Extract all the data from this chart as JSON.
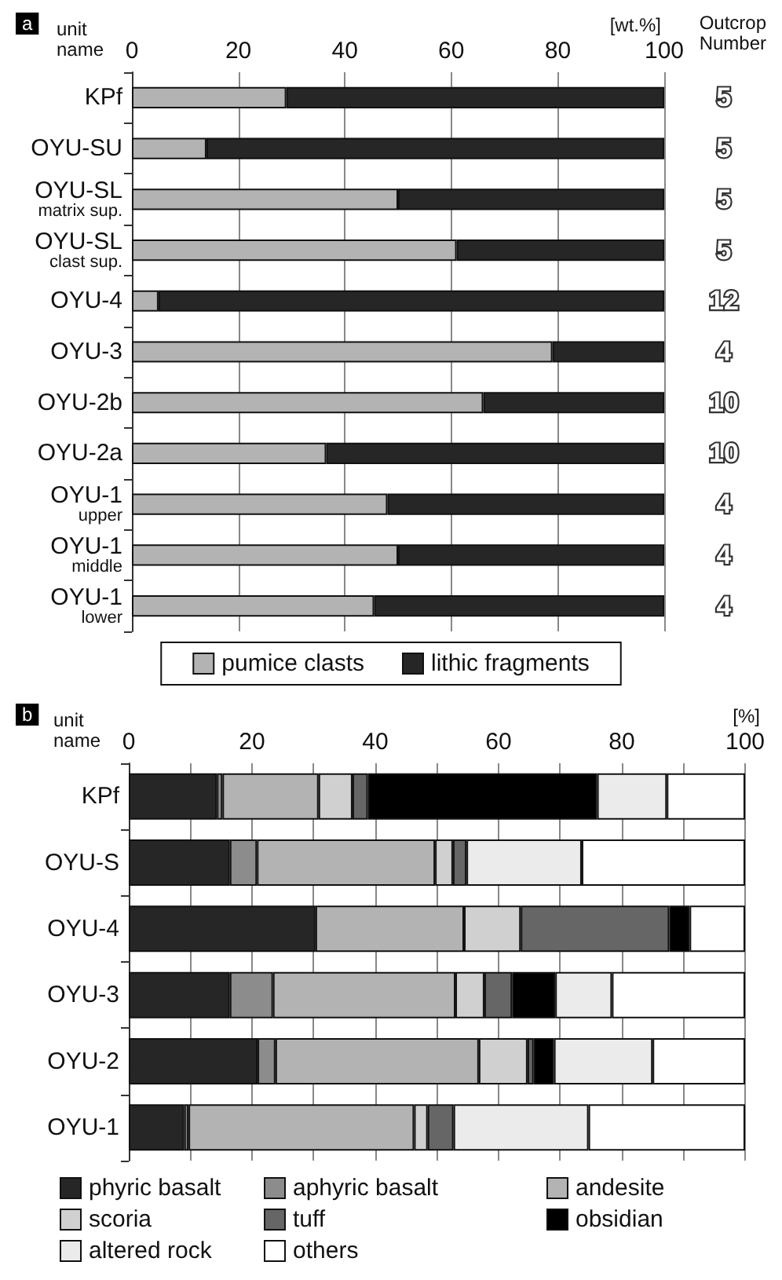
{
  "chart_data": [
    {
      "type": "bar",
      "title": "a",
      "ylabel": "unit\nname",
      "xlabel": "[wt.%]",
      "y2label": "Outcrop\nNumber",
      "orientation": "horizontal",
      "stacked": true,
      "grid": true,
      "legend": "bottom",
      "categories": [
        "KPf",
        "OYU-SU",
        "OYU-SL\nmatrix sup.",
        "OYU-SL\nclast sup.",
        "OYU-4",
        "OYU-3",
        "OYU-2b",
        "OYU-2a",
        "OYU-1\nupper",
        "OYU-1\nmiddle",
        "OYU-1\nlower"
      ],
      "xlim": [
        0,
        100
      ],
      "xticks": [
        0,
        20,
        40,
        60,
        80,
        100
      ],
      "series": [
        {
          "name": "pumice clasts",
          "color": "#b3b3b3",
          "values": [
            29,
            14,
            50,
            61,
            5,
            79,
            66,
            36.5,
            48,
            50,
            45.5
          ]
        },
        {
          "name": "lithic fragments",
          "color": "#262626",
          "values": [
            71,
            86,
            50,
            39,
            95,
            21,
            34,
            63.5,
            52,
            50,
            54.5
          ]
        }
      ],
      "annotations": [
        "5",
        "5",
        "5",
        "5",
        "12",
        "4",
        "10",
        "10",
        "4",
        "4",
        "4"
      ]
    },
    {
      "type": "bar",
      "title": "b",
      "ylabel": "unit\nname",
      "xlabel": "[%]",
      "orientation": "horizontal",
      "stacked": true,
      "grid": true,
      "legend": "bottom",
      "categories": [
        "KPf",
        "OYU-S",
        "OYU-4",
        "OYU-3",
        "OYU-2",
        "OYU-1"
      ],
      "xlim": [
        0,
        100
      ],
      "xticks": [
        0,
        {
          "value": 10,
          "label": null
        },
        20,
        {
          "value": 30,
          "label": null
        },
        40,
        {
          "value": 50,
          "label": null
        },
        60,
        {
          "value": 70,
          "label": null
        },
        80,
        {
          "value": 90,
          "label": null
        },
        100
      ],
      "series": [
        {
          "name": "phyric basalt",
          "color": "#262626",
          "values": [
            14.3,
            16.4,
            30.3,
            16.4,
            20.9,
            9.0
          ]
        },
        {
          "name": "aphyric basalt",
          "color": "#8c8c8c",
          "values": [
            0.9,
            4.4,
            null,
            7.0,
            2.9,
            0.7
          ]
        },
        {
          "name": "andesite",
          "color": "#b3b3b3",
          "values": [
            15.6,
            28.9,
            24.1,
            29.6,
            33.0,
            36.6
          ]
        },
        {
          "name": "scoria",
          "color": "#d0d0d0",
          "values": [
            5.5,
            2.9,
            9.2,
            4.7,
            7.9,
            2.2
          ]
        },
        {
          "name": "tuff",
          "color": "#666666",
          "values": [
            2.5,
            2.2,
            24.1,
            4.5,
            1.0,
            4.2
          ]
        },
        {
          "name": "obsidian",
          "color": "#000000",
          "values": [
            37.2,
            null,
            3.3,
            7.0,
            3.3,
            null
          ]
        },
        {
          "name": "altered rock",
          "color": "#ebebeb",
          "values": [
            11.3,
            18.7,
            null,
            9.2,
            16.0,
            21.9
          ]
        },
        {
          "name": "others",
          "color": "#ffffff",
          "values": [
            12.7,
            26.5,
            9.0,
            21.6,
            15.0,
            25.4
          ]
        }
      ]
    }
  ]
}
